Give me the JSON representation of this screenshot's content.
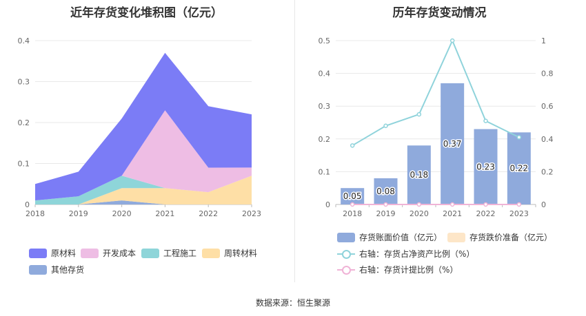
{
  "colors": {
    "raw": "#7b7cf6",
    "dev": "#eebde4",
    "eng": "#8ed5d9",
    "turn": "#fedfa6",
    "other": "#8faadc",
    "bar": "#8faadc",
    "impair": "#fde6c8",
    "line1": "#8fd3db",
    "line2": "#f0b3d6"
  },
  "chart_data": [
    {
      "type": "area",
      "title": "近年存货变化堆积图（亿元）",
      "x": [
        "2018",
        "2019",
        "2020",
        "2021",
        "2022",
        "2023"
      ],
      "ylim": [
        0,
        0.4
      ],
      "yticks": [
        "0",
        "0.1",
        "0.2",
        "0.3",
        "0.4"
      ],
      "series": [
        {
          "name": "原材料",
          "values": [
            0.04,
            0.06,
            0.14,
            0.14,
            0.15,
            0.13
          ]
        },
        {
          "name": "开发成本",
          "values": [
            0,
            0,
            0,
            0.19,
            0.06,
            0.02
          ]
        },
        {
          "name": "工程施工",
          "values": [
            0.01,
            0.02,
            0.03,
            0,
            0,
            0
          ]
        },
        {
          "name": "周转材料",
          "values": [
            0,
            0,
            0.03,
            0.04,
            0.03,
            0.07
          ]
        },
        {
          "name": "其他存货",
          "values": [
            0,
            0,
            0.01,
            0,
            0,
            0
          ]
        }
      ]
    },
    {
      "type": "bar",
      "title": "历年存货变动情况",
      "categories": [
        "2018",
        "2019",
        "2020",
        "2021",
        "2022",
        "2023"
      ],
      "ylim": [
        0,
        0.5
      ],
      "yticks": [
        "0",
        "0.1",
        "0.2",
        "0.3",
        "0.4",
        "0.5"
      ],
      "y2lim": [
        0,
        1
      ],
      "y2ticks": [
        "0",
        "0.2",
        "0.4",
        "0.6",
        "0.8",
        "1"
      ],
      "series": [
        {
          "name": "存货账面价值（亿元）",
          "values": [
            0.05,
            0.08,
            0.18,
            0.37,
            0.23,
            0.22
          ],
          "labels": [
            "0.05",
            "0.08",
            "0.18",
            "0.37",
            "0.23",
            "0.22"
          ]
        },
        {
          "name": "存货跌价准备（亿元）",
          "values": [
            0,
            0,
            0,
            0,
            0,
            0
          ]
        },
        {
          "name": "右轴：存货占净资产比例（%）",
          "axis": "right",
          "values": [
            0.36,
            0.48,
            0.55,
            1.0,
            0.51,
            0.41
          ]
        },
        {
          "name": "右轴：存货计提比例（%）",
          "axis": "right",
          "values": [
            0,
            0,
            0,
            0,
            0,
            0
          ]
        }
      ]
    }
  ],
  "source": "数据来源：恒生聚源"
}
